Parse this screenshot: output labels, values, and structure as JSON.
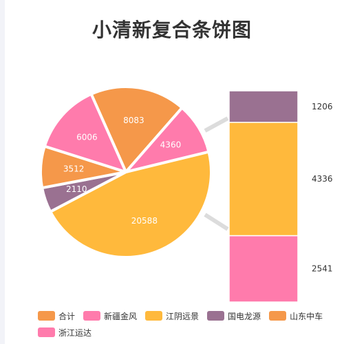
{
  "title": "小清新复合条饼图",
  "chart_data": {
    "type": "pie",
    "title": "小清新复合条饼图",
    "pie": {
      "slices": [
        {
          "name": "合计",
          "value": 8083,
          "color": "#f5984a"
        },
        {
          "name": "新疆金风",
          "value": 4360,
          "color": "#ff7bac"
        },
        {
          "name": "江阴远景",
          "value": 20588,
          "color": "#ffb93c"
        },
        {
          "name": "国电龙源",
          "value": 2110,
          "label": "2110",
          "color": "#9a7191"
        },
        {
          "name": "山东中车",
          "value": 3512,
          "color": "#f5984a"
        },
        {
          "name": "浙江运达",
          "value": 6006,
          "color": "#ff7bac"
        }
      ]
    },
    "bar": {
      "type": "stacked-bar",
      "segments": [
        {
          "value": 2541,
          "color": "#ff7bac"
        },
        {
          "value": 4336,
          "color": "#ffb93c"
        },
        {
          "value": 1206,
          "color": "#9a7191"
        }
      ]
    },
    "legend": [
      {
        "label": "合计",
        "color": "#f5984a"
      },
      {
        "label": "新疆金风",
        "color": "#ff7bac"
      },
      {
        "label": "江阴远景",
        "color": "#ffb93c"
      },
      {
        "label": "国电龙源",
        "color": "#9a7191"
      },
      {
        "label": "山东中车",
        "color": "#f5984a"
      },
      {
        "label": "浙江运达",
        "color": "#ff7bac"
      }
    ],
    "legend_position": "bottom"
  }
}
